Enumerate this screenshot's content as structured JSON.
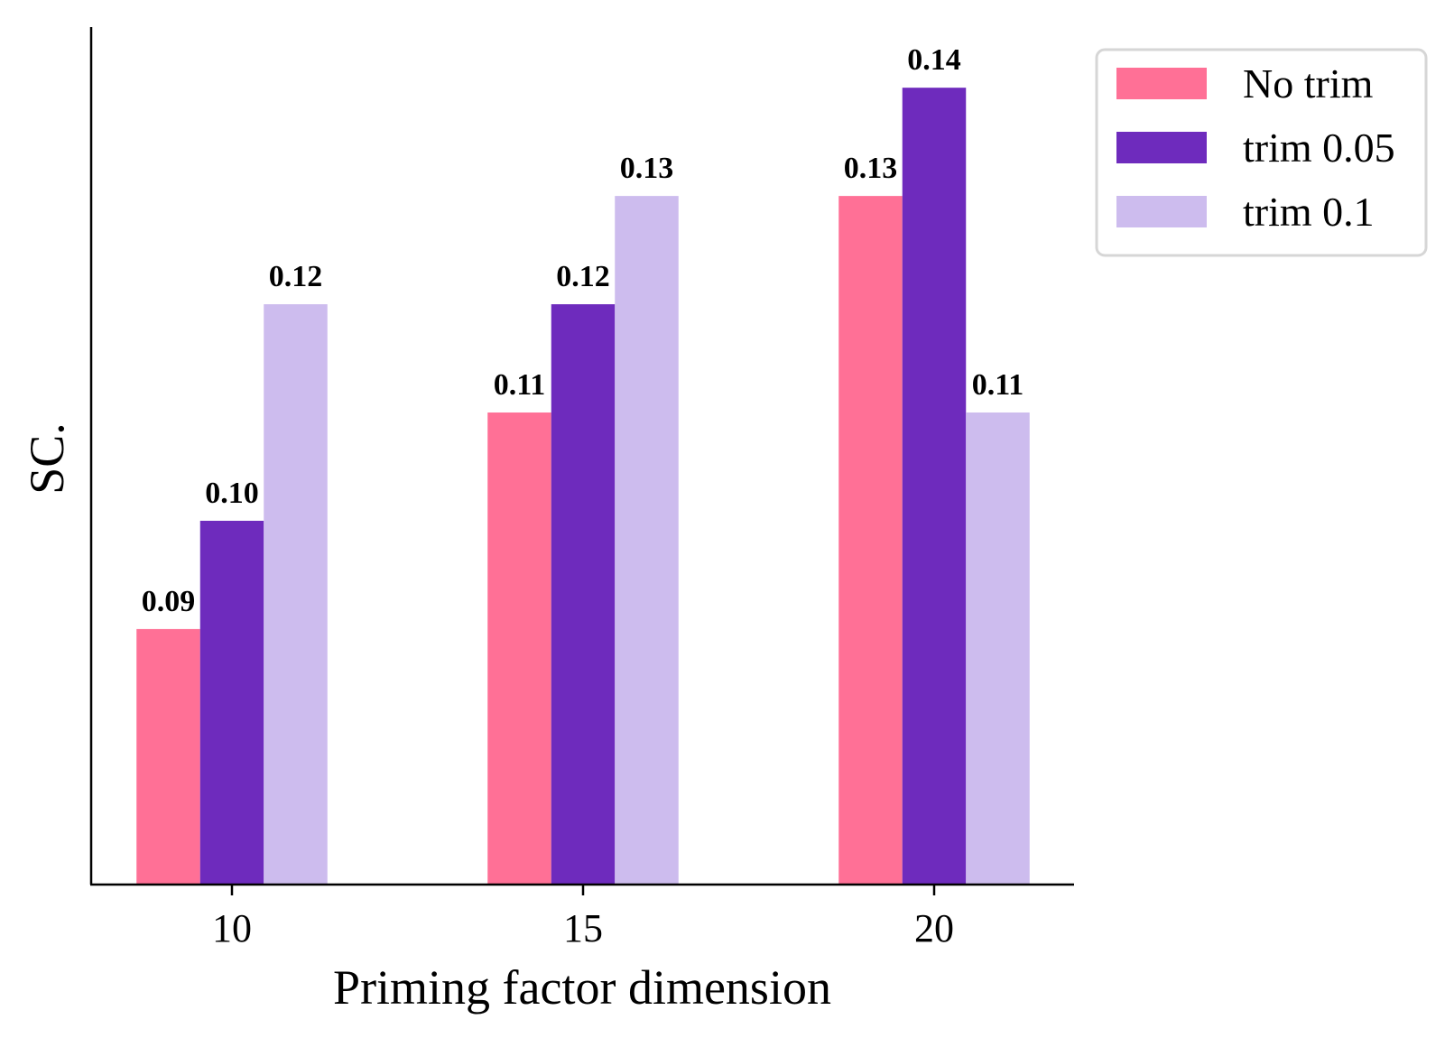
{
  "chart_data": {
    "type": "bar",
    "title": "",
    "xlabel": "Priming factor dimension",
    "ylabel": "SC.",
    "categories": [
      "10",
      "15",
      "20"
    ],
    "ylim": [
      0.0664,
      0.1456
    ],
    "yticks_visible": false,
    "grid": false,
    "legend_position": "outside-top-right",
    "series": [
      {
        "name": "No trim",
        "color": "#ff7096",
        "values": [
          0.09,
          0.11,
          0.13
        ],
        "labels": [
          "0.09",
          "0.11",
          "0.13"
        ]
      },
      {
        "name": "trim 0.05",
        "color": "#6e2bbd",
        "values": [
          0.1,
          0.12,
          0.14
        ],
        "labels": [
          "0.10",
          "0.12",
          "0.14"
        ]
      },
      {
        "name": "trim 0.1",
        "color": "#cdbcee",
        "values": [
          0.12,
          0.13,
          0.11
        ],
        "labels": [
          "0.12",
          "0.13",
          "0.11"
        ]
      }
    ]
  }
}
